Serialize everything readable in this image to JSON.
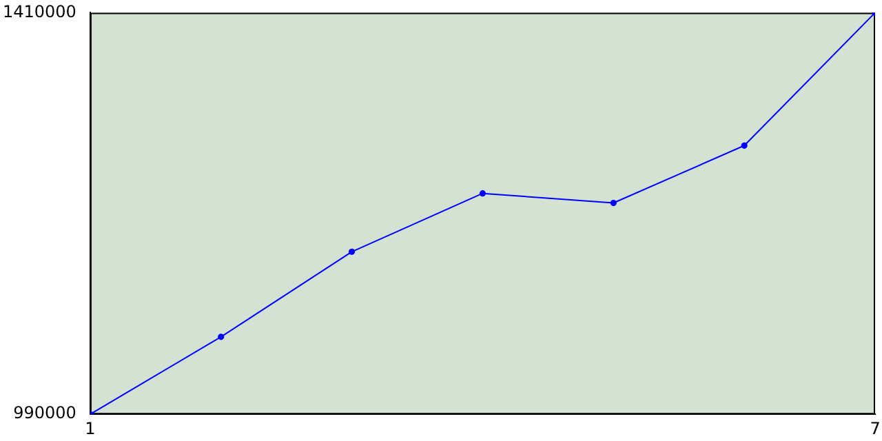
{
  "chart_data": {
    "type": "line",
    "x": [
      1,
      2,
      3,
      4,
      5,
      6,
      7
    ],
    "series": [
      {
        "color": "#0000ff",
        "values": [
          990000,
          1071000,
          1160000,
          1221000,
          1211000,
          1271000,
          1410000
        ]
      }
    ],
    "xlim": [
      1,
      7
    ],
    "xticks": [
      1,
      7
    ],
    "ylim": [
      990000,
      1410000
    ],
    "yticks": [
      990000,
      1410000
    ],
    "grid": false,
    "legend": false,
    "marker": "circle",
    "line_style": "solid"
  }
}
